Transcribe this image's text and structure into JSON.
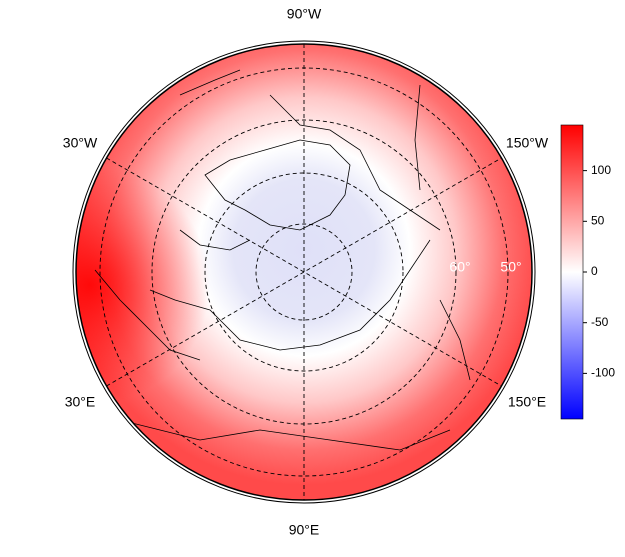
{
  "map": {
    "longitude_labels": [
      "90°W",
      "30°W",
      "150°W",
      "30°E",
      "150°E",
      "90°E"
    ],
    "latitude_labels": [
      "60°",
      "50°"
    ],
    "colorbar": {
      "range": [
        -145,
        145
      ],
      "ticks": [
        100,
        50,
        0,
        -50,
        -100
      ],
      "colors": [
        "#0000ff",
        "#ffffff",
        "#ff0000"
      ]
    }
  }
}
